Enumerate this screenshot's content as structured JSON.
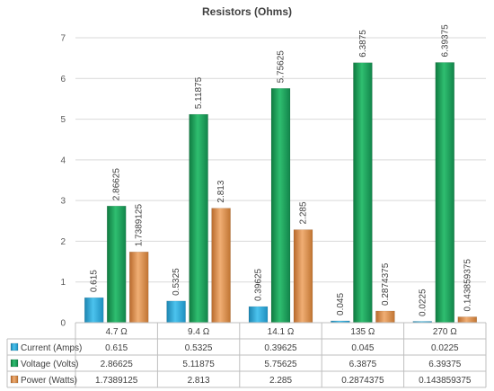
{
  "chart_data": {
    "type": "bar",
    "title": "Resistors (Ohms)",
    "categories": [
      "4.7 Ω",
      "9.4 Ω",
      "14.1 Ω",
      "135 Ω",
      "270 Ω"
    ],
    "series": [
      {
        "name": "Current (Amps)",
        "values": [
          0.615,
          0.5325,
          0.39625,
          0.045,
          0.0225
        ],
        "labels": [
          "0.615",
          "0.5325",
          "0.39625",
          "0.045",
          "0.0225"
        ],
        "color": "#2FA8D8"
      },
      {
        "name": "Voltage (Volts)",
        "values": [
          2.86625,
          5.11875,
          5.75625,
          6.3875,
          6.39375
        ],
        "labels": [
          "2.86625",
          "5.11875",
          "5.75625",
          "6.3875",
          "6.39375"
        ],
        "color": "#1FA35C"
      },
      {
        "name": "Power (Watts)",
        "values": [
          1.7389125,
          2.813,
          2.285,
          0.2874375,
          0.143859375
        ],
        "labels": [
          "1.7389125",
          "2.813",
          "2.285",
          "0.2874375",
          "0.143859375"
        ],
        "color": "#E0965A"
      }
    ],
    "ylim": [
      0,
      7
    ],
    "yticks": [
      "0",
      "1",
      "2",
      "3",
      "4",
      "5",
      "6",
      "7"
    ],
    "grid": true,
    "legend": "data-table"
  }
}
